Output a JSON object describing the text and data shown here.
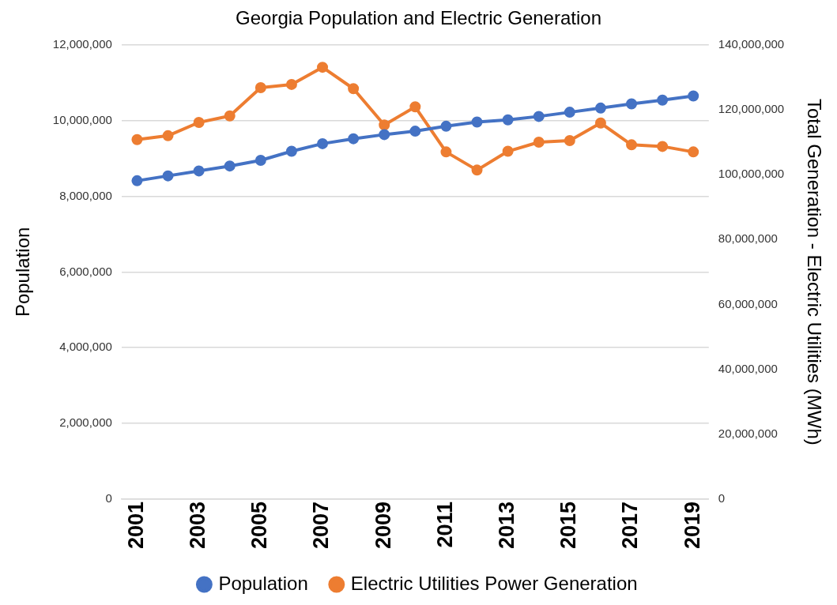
{
  "chart_data": {
    "type": "line",
    "title": "Georgia Population and Electric Generation",
    "ylabel": "Population",
    "y2label": "Total Generation - Electric Utilities (MWh)",
    "categories": [
      "2001",
      null,
      "2003",
      null,
      "2005",
      null,
      "2007",
      null,
      "2009",
      null,
      "2011",
      null,
      "2013",
      null,
      "2015",
      null,
      "2017",
      null,
      "2019"
    ],
    "series": [
      {
        "name": "Population",
        "color": "#4472c4",
        "values": [
          8410000,
          8540000,
          8670000,
          8800000,
          8950000,
          9190000,
          9390000,
          9520000,
          9630000,
          9720000,
          9850000,
          9960000,
          10020000,
          10110000,
          10220000,
          10330000,
          10440000,
          10540000,
          10650000
        ]
      },
      {
        "name": "Electric Utilities Power Generation",
        "color": "#ed7d31",
        "axis": "y2",
        "values": [
          110800000,
          112000000,
          116100000,
          118100000,
          126800000,
          127800000,
          133100000,
          126500000,
          115300000,
          120900000,
          107000000,
          101400000,
          107200000,
          110000000,
          110500000,
          115900000,
          109200000,
          108700000,
          107000000
        ]
      }
    ],
    "ylim": [
      0,
      12000000
    ],
    "yticks": [
      0,
      {
        "value": 2000000,
        "label": "2,000,000"
      },
      {
        "value": 4000000,
        "label": "4,000,000"
      },
      {
        "value": 6000000,
        "label": "6,000,000"
      },
      {
        "value": 8000000,
        "label": "8,000,000"
      },
      {
        "value": 10000000,
        "label": "10,000,000"
      },
      {
        "value": 12000000,
        "label": "12,000,000"
      }
    ],
    "y2lim": [
      0,
      140000000
    ],
    "y2ticks": [
      0,
      {
        "value": 20000000,
        "label": "20,000,000"
      },
      {
        "value": 40000000,
        "label": "40,000,000"
      },
      {
        "value": 60000000,
        "label": "60,000,000"
      },
      {
        "value": 80000000,
        "label": "80,000,000"
      },
      {
        "value": 100000000,
        "label": "100,000,000"
      },
      {
        "value": 120000000,
        "label": "120,000,000"
      },
      {
        "value": 140000000,
        "label": "140,000,000"
      }
    ],
    "grid": "y",
    "legend": "bottom",
    "marker": "circle",
    "line_style": "solid"
  }
}
